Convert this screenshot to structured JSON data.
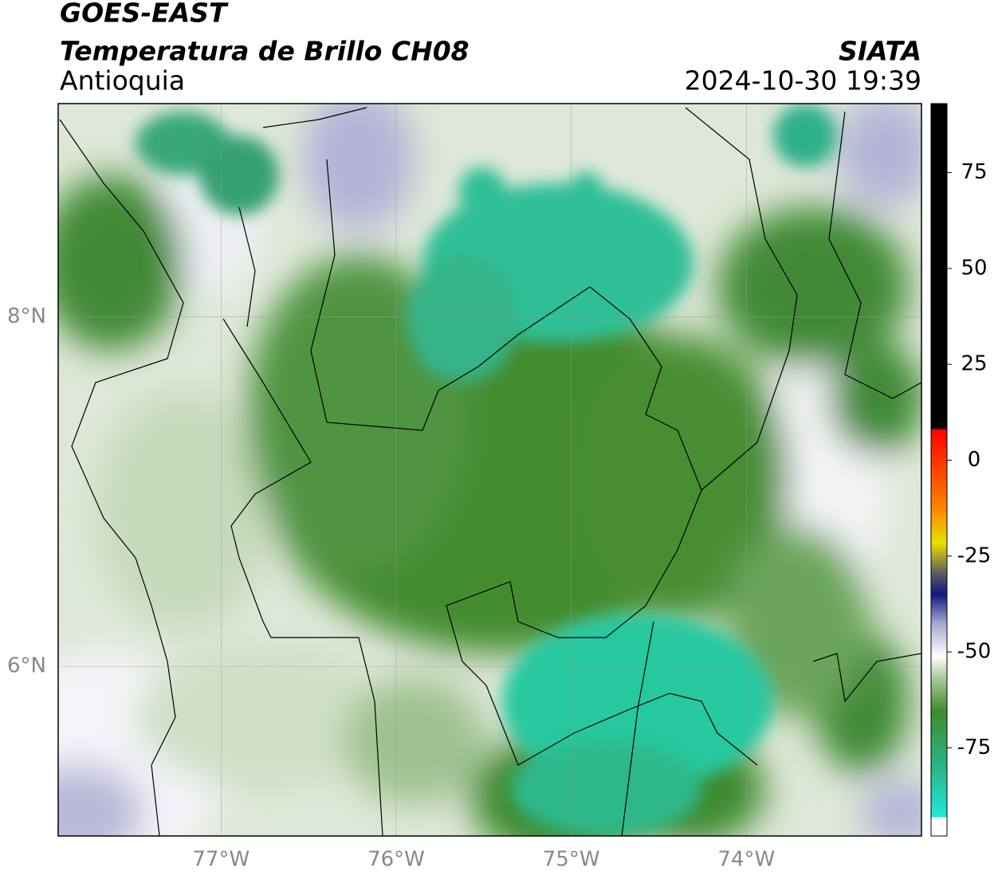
{
  "header": {
    "title": "GOES-EAST",
    "subtitle": "Temperatura de Brillo CH08",
    "region": "Antioquia",
    "source": "SIATA",
    "timestamp": "2024-10-30 19:39"
  },
  "map": {
    "xlim": [
      -77.93,
      -73.0
    ],
    "ylim": [
      5.03,
      9.22
    ],
    "xticks": [
      {
        "value": -77,
        "label": "77°W"
      },
      {
        "value": -76,
        "label": "76°W"
      },
      {
        "value": -75,
        "label": "75°W"
      },
      {
        "value": -74,
        "label": "74°W"
      }
    ],
    "yticks": [
      {
        "value": 6,
        "label": "6°N"
      },
      {
        "value": 8,
        "label": "8°N"
      }
    ],
    "grid": true
  },
  "colorbar": {
    "range": [
      -98,
      93
    ],
    "ticks": [
      75,
      50,
      25,
      0,
      -25,
      -50,
      -75
    ]
  }
}
